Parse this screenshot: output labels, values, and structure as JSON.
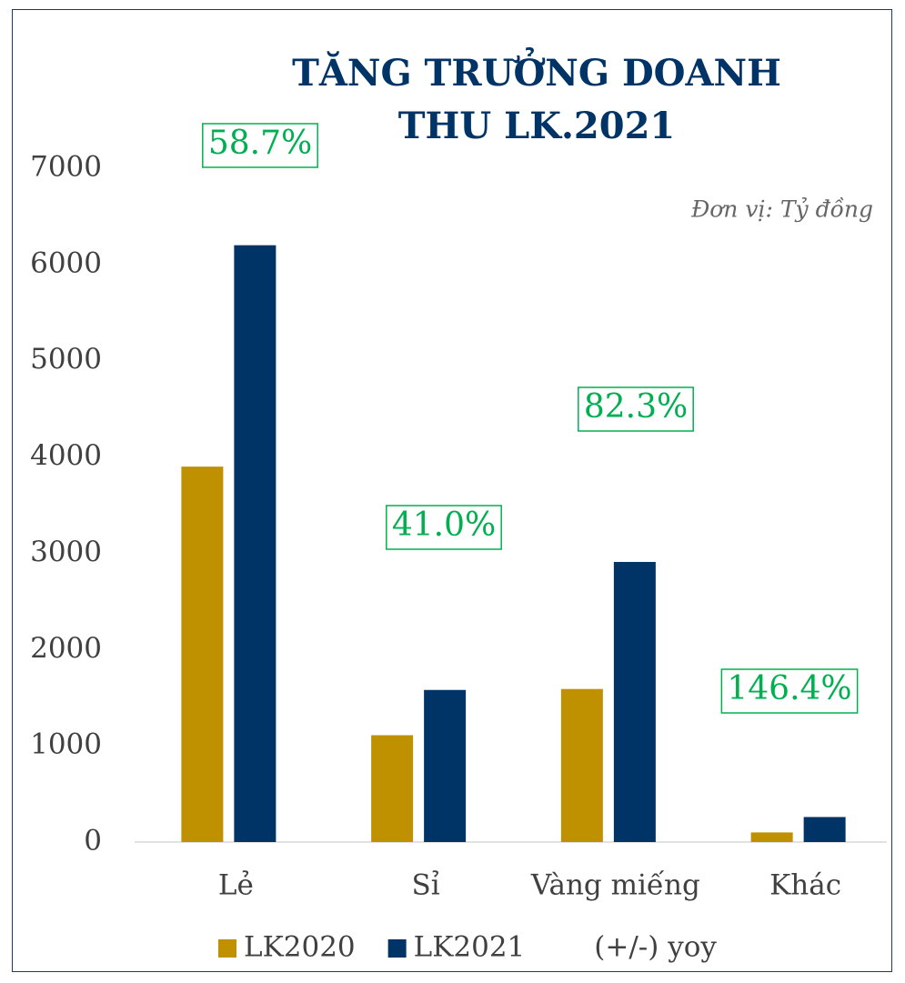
{
  "chart_data": {
    "type": "bar",
    "title": "TĂNG TRƯỞNG DOANH THU LK.2021",
    "subtitle": "Đơn vị: Tỷ đồng",
    "categories": [
      "Lẻ",
      "Sỉ",
      "Vàng miếng",
      "Khác"
    ],
    "series": [
      {
        "name": "LK2020",
        "color": "#bf9000",
        "values": [
          3900,
          1110,
          1590,
          100
        ]
      },
      {
        "name": "LK2021",
        "color": "#003366",
        "values": [
          6200,
          1580,
          2910,
          260
        ]
      },
      {
        "name": "(+/-) yoy",
        "color": "#00b050",
        "values": [
          58.7,
          41.0,
          82.3,
          146.4
        ],
        "value_labels": [
          "58.7%",
          "41.0%",
          "82.3%",
          "146.4%"
        ]
      }
    ],
    "ylim": [
      0,
      7000
    ],
    "yticks": [
      0,
      1000,
      2000,
      3000,
      4000,
      5000,
      6000,
      7000
    ],
    "grid": false,
    "legend": "bottom"
  }
}
